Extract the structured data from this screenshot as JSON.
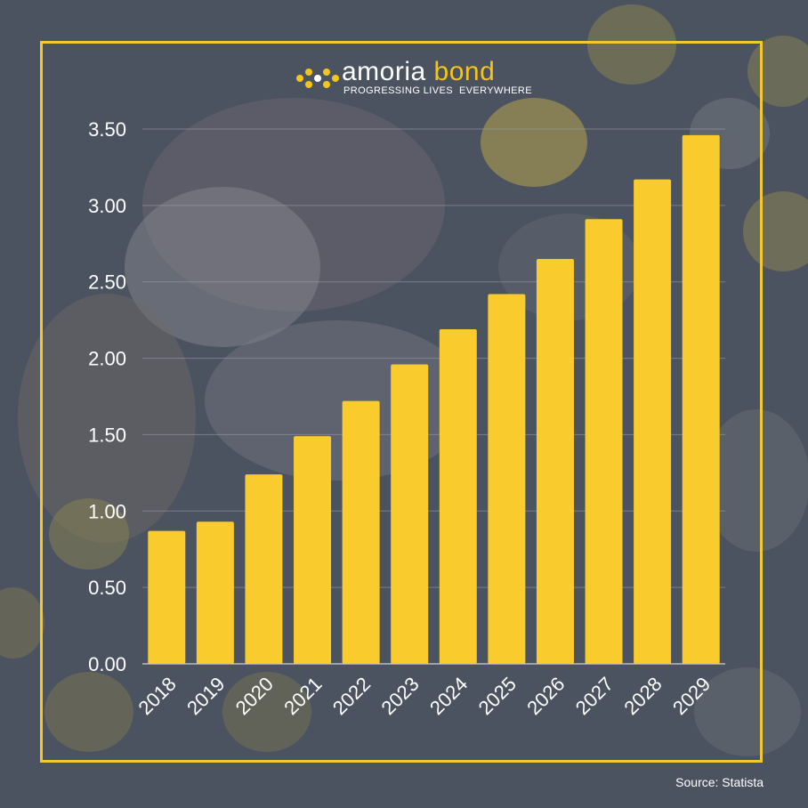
{
  "brand": {
    "name_part1": "amoria",
    "name_part2": "bond",
    "tagline_part1": "PROGRESSING LIVES",
    "tagline_part2": "EVERYWHERE",
    "logo_icon": "dots-logo-icon"
  },
  "colors": {
    "background": "#4b5360",
    "frame": "#f2c82e",
    "bar": "#f9cb2d",
    "text": "#ffffff",
    "accent": "#f5c519"
  },
  "chart_data": {
    "type": "bar",
    "categories": [
      "2018",
      "2019",
      "2020",
      "2021",
      "2022",
      "2023",
      "2024",
      "2025",
      "2026",
      "2027",
      "2028",
      "2029"
    ],
    "values": [
      0.87,
      0.93,
      1.24,
      1.49,
      1.72,
      1.96,
      2.19,
      2.42,
      2.65,
      2.91,
      3.17,
      3.46
    ],
    "yticks": [
      "0.00",
      "0.50",
      "1.00",
      "1.50",
      "2.00",
      "2.50",
      "3.00",
      "3.50"
    ],
    "ylim": [
      0,
      3.5
    ],
    "title": "",
    "xlabel": "",
    "ylabel": "",
    "grid": true,
    "legend": "none"
  },
  "footer": {
    "source": "Source: Statista"
  }
}
